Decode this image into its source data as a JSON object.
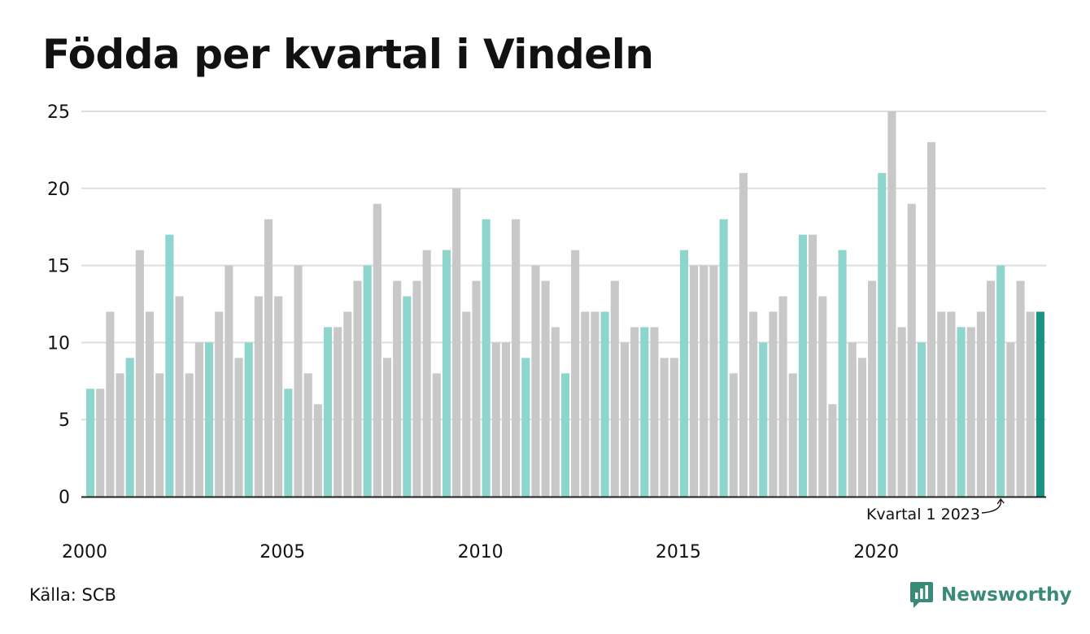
{
  "title": "Födda per kvartal i Vindeln",
  "source": "Källa: SCB",
  "brand": "Newsworthy",
  "colors": {
    "bar_default": "#c8c8c8",
    "bar_q1": "#8dd5cd",
    "bar_latest": "#1a9385",
    "grid": "#dddddd",
    "axis": "#222222",
    "brand": "#3a8a7a"
  },
  "chart_data": {
    "type": "bar",
    "title": "Födda per kvartal i Vindeln",
    "xlabel": "",
    "ylabel": "",
    "ylim": [
      0,
      25
    ],
    "yticks": [
      0,
      5,
      10,
      15,
      20,
      25
    ],
    "xticks": [
      "2000",
      "2005",
      "2010",
      "2015",
      "2020"
    ],
    "grid": true,
    "legend": "none",
    "start_year": 2000,
    "quarters_per_year": 4,
    "values": [
      7,
      7,
      12,
      8,
      9,
      16,
      12,
      8,
      17,
      13,
      8,
      10,
      10,
      12,
      15,
      9,
      10,
      13,
      18,
      13,
      7,
      15,
      8,
      6,
      11,
      11,
      12,
      14,
      15,
      19,
      9,
      14,
      13,
      14,
      16,
      8,
      16,
      20,
      12,
      14,
      18,
      10,
      10,
      18,
      9,
      15,
      14,
      11,
      8,
      16,
      12,
      12,
      12,
      14,
      10,
      11,
      11,
      11,
      9,
      9,
      16,
      15,
      15,
      15,
      18,
      8,
      21,
      12,
      10,
      12,
      13,
      8,
      17,
      17,
      13,
      6,
      16,
      10,
      9,
      14,
      21,
      25,
      11,
      19,
      10,
      23,
      12,
      12,
      11,
      11,
      12,
      14,
      15,
      10,
      14,
      12,
      12
    ],
    "annotation": {
      "text": "Kvartal 1 2023",
      "target_index": 92
    }
  }
}
